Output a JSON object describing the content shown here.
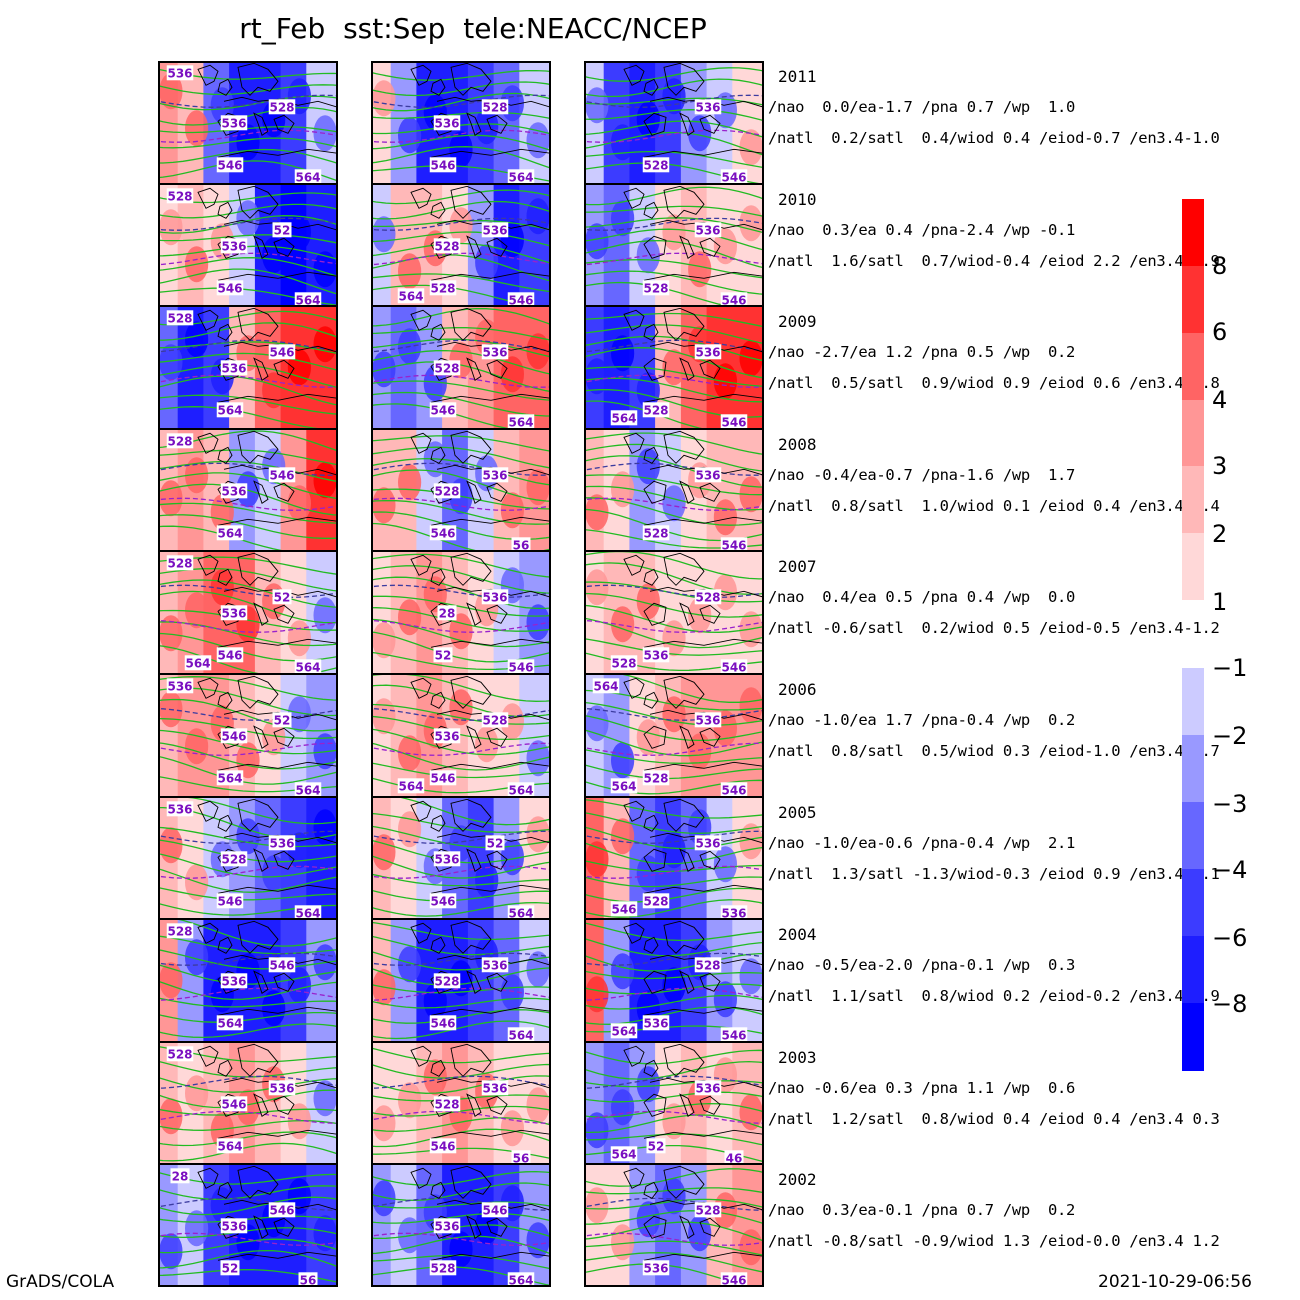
{
  "title": "rt_Feb  sst:Sep  tele:NEACC/NCEP",
  "footer": {
    "left": "GrADS/COLA",
    "right": "2021-10-29-06:56"
  },
  "colors": {
    "positive": [
      "#ffd8d8",
      "#ffb8b8",
      "#ff9696",
      "#ff6464",
      "#ff3232",
      "#ff0000"
    ],
    "negative": [
      "#cccbff",
      "#9999ff",
      "#6767ff",
      "#3c3cff",
      "#1e1eff",
      "#0000ff"
    ],
    "contour": "#22bb22",
    "dashed": "#3c3ca0",
    "dashed_purple": "#9922cc",
    "label_text": "#7a0fc0",
    "coast": "#000000"
  },
  "chart_data": {
    "type": "heatmap",
    "title": "rt_Feb  sst:Sep  tele:NEACC/NCEP",
    "columns": 3,
    "colorbar_positive": {
      "levels": [
        "8",
        "6",
        "4",
        "3",
        "2",
        "1"
      ]
    },
    "colorbar_negative": {
      "levels": [
        "-1",
        "-2",
        "-3",
        "-4",
        "-6",
        "-8"
      ]
    },
    "rows": [
      {
        "year": "2011",
        "tele1": "/nao  0.0/ea-1.7 /pna 0.7 /wp  1.0",
        "tele2": "/natl  0.2/satl  0.4/wiod 0.4 /eiod-0.7 /en3.4-1.0",
        "labels": [
          [
            "536",
            "536",
            "528",
            "546",
            "564"
          ],
          [
            "536",
            "528",
            "546",
            "564"
          ],
          [
            "536",
            "528",
            "546"
          ]
        ]
      },
      {
        "year": "2010",
        "tele1": "/nao  0.3/ea 0.4 /pna-2.4 /wp -0.1",
        "tele2": "/natl  1.6/satl  0.7/wiod-0.4 /eiod 2.2 /en3.4-1.9",
        "labels": [
          [
            "528",
            "536",
            "52",
            "546",
            "564"
          ],
          [
            "528",
            "536",
            "528",
            "546",
            "564"
          ],
          [
            "536",
            "528",
            "546"
          ]
        ]
      },
      {
        "year": "2009",
        "tele1": "/nao -2.7/ea 1.2 /pna 0.5 /wp  0.2",
        "tele2": "/natl  0.5/satl  0.9/wiod 0.9 /eiod 0.6 /en3.4 0.8",
        "labels": [
          [
            "528",
            "536",
            "546",
            "564"
          ],
          [
            "528",
            "536",
            "546",
            "564"
          ],
          [
            "536",
            "528",
            "546",
            "564"
          ]
        ]
      },
      {
        "year": "2008",
        "tele1": "/nao -0.4/ea-0.7 /pna-1.6 /wp  1.7",
        "tele2": "/natl  0.8/satl  1.0/wiod 0.1 /eiod 0.4 /en3.4-0.4",
        "labels": [
          [
            "528",
            "536",
            "546",
            "564"
          ],
          [
            "528",
            "536",
            "546",
            "56"
          ],
          [
            "536",
            "528",
            "546"
          ]
        ]
      },
      {
        "year": "2007",
        "tele1": "/nao  0.4/ea 0.5 /pna 0.4 /wp  0.0",
        "tele2": "/natl -0.6/satl  0.2/wiod 0.5 /eiod-0.5 /en3.4-1.2",
        "labels": [
          [
            "528",
            "536",
            "52",
            "546",
            "564",
            "564"
          ],
          [
            "28",
            "536",
            "52",
            "546"
          ],
          [
            "528",
            "536",
            "546",
            "528"
          ]
        ]
      },
      {
        "year": "2006",
        "tele1": "/nao -1.0/ea 1.7 /pna-0.4 /wp  0.2",
        "tele2": "/natl  0.8/satl  0.5/wiod 0.3 /eiod-1.0 /en3.4 0.7",
        "labels": [
          [
            "536",
            "546",
            "52",
            "564",
            "564"
          ],
          [
            "536",
            "528",
            "546",
            "564",
            "564"
          ],
          [
            "536",
            "528",
            "546",
            "564",
            "564"
          ]
        ]
      },
      {
        "year": "2005",
        "tele1": "/nao -1.0/ea-0.6 /pna-0.4 /wp  2.1",
        "tele2": "/natl  1.3/satl -1.3/wiod-0.3 /eiod 0.9 /en3.4-0.1",
        "labels": [
          [
            "536",
            "528",
            "536",
            "546",
            "564"
          ],
          [
            "536",
            "52",
            "546",
            "564"
          ],
          [
            "536",
            "528",
            "536",
            "546"
          ]
        ]
      },
      {
        "year": "2004",
        "tele1": "/nao -0.5/ea-2.0 /pna-0.1 /wp  0.3",
        "tele2": "/natl  1.1/satl  0.8/wiod 0.2 /eiod-0.2 /en3.4 0.9",
        "labels": [
          [
            "528",
            "536",
            "546",
            "564"
          ],
          [
            "528",
            "536",
            "546",
            "564"
          ],
          [
            "528",
            "536",
            "546",
            "564"
          ]
        ]
      },
      {
        "year": "2003",
        "tele1": "/nao -0.6/ea 0.3 /pna 1.1 /wp  0.6",
        "tele2": "/natl  1.2/satl  0.8/wiod 0.4 /eiod 0.4 /en3.4 0.3",
        "labels": [
          [
            "528",
            "546",
            "536",
            "564"
          ],
          [
            "528",
            "536",
            "546",
            "56"
          ],
          [
            "536",
            "52",
            "46",
            "564"
          ]
        ]
      },
      {
        "year": "2002",
        "tele1": "/nao  0.3/ea-0.1 /pna 0.7 /wp  0.2",
        "tele2": "/natl -0.8/satl -0.9/wiod 1.3 /eiod-0.0 /en3.4 1.2",
        "labels": [
          [
            "28",
            "536",
            "546",
            "52",
            "56"
          ],
          [
            "536",
            "546",
            "528",
            "564"
          ],
          [
            "528",
            "536",
            "546"
          ]
        ]
      }
    ],
    "anomaly_field": [
      [
        [
          3,
          2,
          -3,
          -6,
          -6,
          -4,
          -1
        ],
        [
          1,
          -2,
          -6,
          -6,
          -4,
          -3,
          -1
        ],
        [
          -1,
          -4,
          -6,
          -4,
          -2,
          -1,
          1
        ]
      ],
      [
        [
          1,
          2,
          1,
          -1,
          -6,
          -8,
          -6
        ],
        [
          -1,
          2,
          2,
          1,
          -2,
          -6,
          -4
        ],
        [
          -2,
          -3,
          -1,
          1,
          2,
          1,
          1
        ]
      ],
      [
        [
          -3,
          -6,
          -4,
          2,
          4,
          6,
          6
        ],
        [
          -2,
          -3,
          -2,
          2,
          3,
          4,
          4
        ],
        [
          -4,
          -6,
          -4,
          2,
          4,
          6,
          6
        ]
      ],
      [
        [
          2,
          3,
          2,
          -2,
          -1,
          3,
          6
        ],
        [
          2,
          2,
          -1,
          -3,
          -1,
          2,
          3
        ],
        [
          2,
          1,
          -2,
          -1,
          1,
          2,
          2
        ]
      ],
      [
        [
          2,
          3,
          4,
          4,
          2,
          1,
          -1
        ],
        [
          1,
          2,
          3,
          2,
          1,
          -1,
          -2
        ],
        [
          1,
          2,
          2,
          1,
          1,
          1,
          1
        ]
      ],
      [
        [
          2,
          3,
          3,
          2,
          1,
          -1,
          -2
        ],
        [
          1,
          2,
          3,
          2,
          1,
          1,
          -1
        ],
        [
          -1,
          -2,
          1,
          2,
          3,
          3,
          3
        ]
      ],
      [
        [
          2,
          1,
          -1,
          -2,
          -3,
          -4,
          -6
        ],
        [
          2,
          1,
          -1,
          -3,
          -4,
          -2,
          1
        ],
        [
          4,
          2,
          -3,
          -4,
          -3,
          -1,
          1
        ]
      ],
      [
        [
          3,
          -2,
          -6,
          -6,
          -6,
          -4,
          -2
        ],
        [
          2,
          -2,
          -6,
          -6,
          -4,
          -3,
          -1
        ],
        [
          4,
          -2,
          -6,
          -6,
          -4,
          -2,
          -1
        ]
      ],
      [
        [
          2,
          1,
          2,
          3,
          2,
          1,
          -1
        ],
        [
          1,
          1,
          2,
          3,
          2,
          1,
          1
        ],
        [
          -2,
          -3,
          -2,
          1,
          2,
          1,
          2
        ]
      ],
      [
        [
          -2,
          -1,
          -4,
          -6,
          -6,
          -6,
          -4
        ],
        [
          -2,
          -1,
          -3,
          -6,
          -6,
          -4,
          -2
        ],
        [
          1,
          1,
          -2,
          -3,
          -2,
          2,
          3
        ]
      ]
    ]
  }
}
